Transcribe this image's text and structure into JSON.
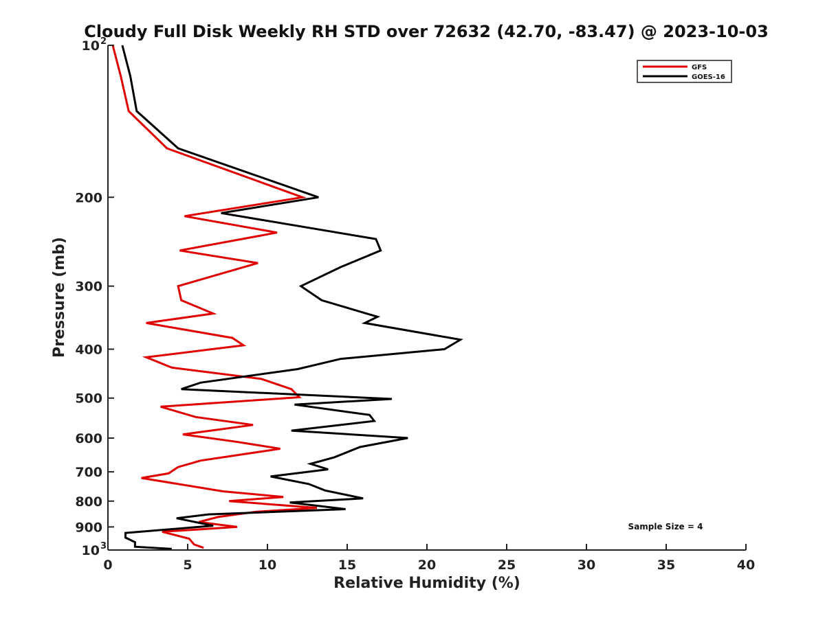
{
  "chart_data": {
    "type": "line",
    "title": "Cloudy Full Disk Weekly RH STD over 72632 (42.70, -83.47) @ 2023-10-03",
    "xlabel": "Relative Humidity (%)",
    "ylabel": "Pressure (mb)",
    "xlim": [
      0,
      40
    ],
    "ylim": [
      1000,
      100
    ],
    "yscale": "log",
    "x_ticks": [
      0,
      5,
      10,
      15,
      20,
      25,
      30,
      35,
      40
    ],
    "y_ticks": [
      {
        "value": 100,
        "label": "10",
        "sup": "2"
      },
      {
        "value": 200,
        "label": "200"
      },
      {
        "value": 300,
        "label": "300"
      },
      {
        "value": 400,
        "label": "400"
      },
      {
        "value": 500,
        "label": "500"
      },
      {
        "value": 600,
        "label": "600"
      },
      {
        "value": 700,
        "label": "700"
      },
      {
        "value": 800,
        "label": "800"
      },
      {
        "value": 900,
        "label": "900"
      },
      {
        "value": 1000,
        "label": "10",
        "sup": "3"
      }
    ],
    "grid": false,
    "legend_position": "top-right",
    "annotation": "Sample Size = 4",
    "series": [
      {
        "name": "GFS",
        "color": "#e00000",
        "points": [
          [
            0.3,
            100
          ],
          [
            0.8,
            115
          ],
          [
            1.3,
            135
          ],
          [
            3.7,
            160
          ],
          [
            12.2,
            200
          ],
          [
            4.8,
            218
          ],
          [
            10.6,
            235
          ],
          [
            4.5,
            255
          ],
          [
            9.4,
            270
          ],
          [
            4.4,
            300
          ],
          [
            4.6,
            320
          ],
          [
            6.6,
            340
          ],
          [
            2.4,
            355
          ],
          [
            7.8,
            380
          ],
          [
            8.5,
            393
          ],
          [
            2.4,
            415
          ],
          [
            4.0,
            435
          ],
          [
            9.6,
            458
          ],
          [
            11.5,
            480
          ],
          [
            12.0,
            498
          ],
          [
            3.3,
            520
          ],
          [
            5.5,
            545
          ],
          [
            9.1,
            565
          ],
          [
            4.7,
            590
          ],
          [
            8.0,
            610
          ],
          [
            10.8,
            630
          ],
          [
            5.8,
            665
          ],
          [
            4.4,
            685
          ],
          [
            3.8,
            705
          ],
          [
            2.1,
            720
          ],
          [
            7.2,
            765
          ],
          [
            11.0,
            785
          ],
          [
            7.6,
            800
          ],
          [
            13.1,
            825
          ],
          [
            9.3,
            840
          ],
          [
            6.9,
            860
          ],
          [
            5.7,
            880
          ],
          [
            8.1,
            900
          ],
          [
            3.4,
            920
          ],
          [
            5.1,
            950
          ],
          [
            5.4,
            975
          ],
          [
            6.0,
            990
          ]
        ]
      },
      {
        "name": "GOES-16",
        "color": "#000000",
        "points": [
          [
            0.9,
            100
          ],
          [
            1.4,
            115
          ],
          [
            1.8,
            135
          ],
          [
            4.4,
            160
          ],
          [
            13.2,
            200
          ],
          [
            7.1,
            215
          ],
          [
            16.8,
            242
          ],
          [
            17.1,
            255
          ],
          [
            14.6,
            275
          ],
          [
            12.1,
            300
          ],
          [
            13.4,
            320
          ],
          [
            16.9,
            345
          ],
          [
            16.1,
            355
          ],
          [
            22.1,
            383
          ],
          [
            21.1,
            400
          ],
          [
            14.6,
            418
          ],
          [
            11.9,
            438
          ],
          [
            5.8,
            466
          ],
          [
            4.6,
            480
          ],
          [
            17.8,
            502
          ],
          [
            11.7,
            515
          ],
          [
            16.4,
            540
          ],
          [
            16.7,
            555
          ],
          [
            11.5,
            580
          ],
          [
            18.8,
            600
          ],
          [
            15.8,
            625
          ],
          [
            14.2,
            655
          ],
          [
            12.7,
            675
          ],
          [
            13.8,
            692
          ],
          [
            10.2,
            715
          ],
          [
            12.6,
            740
          ],
          [
            13.6,
            762
          ],
          [
            16.0,
            790
          ],
          [
            11.4,
            805
          ],
          [
            14.9,
            830
          ],
          [
            6.3,
            850
          ],
          [
            4.3,
            865
          ],
          [
            6.6,
            895
          ],
          [
            1.1,
            925
          ],
          [
            1.1,
            945
          ],
          [
            1.7,
            965
          ],
          [
            1.7,
            985
          ],
          [
            4.0,
            995
          ]
        ]
      }
    ]
  }
}
